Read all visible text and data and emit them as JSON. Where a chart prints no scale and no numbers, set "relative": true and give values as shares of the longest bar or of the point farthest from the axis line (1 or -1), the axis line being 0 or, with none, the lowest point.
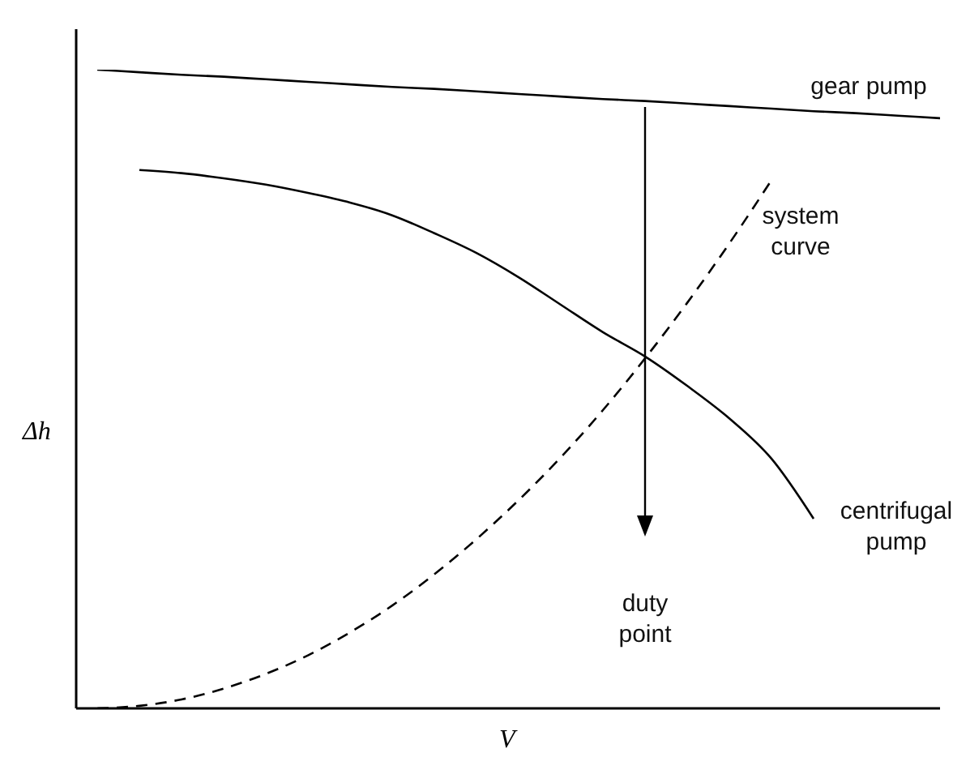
{
  "chart_data": {
    "type": "line",
    "relative": true,
    "xlabel": "V",
    "ylabel": "Δh",
    "marker": "none",
    "categories": [
      null,
      null,
      null,
      null,
      null,
      null,
      null,
      null,
      null,
      null,
      null,
      null,
      null,
      null,
      null,
      null,
      null,
      null,
      null,
      null,
      null
    ],
    "series": [
      {
        "name": "gear pump",
        "color": "#000000",
        "line_style": "solid",
        "values": [
          1,
          0.996,
          0.992,
          0.989,
          0.985,
          0.981,
          0.977,
          0.973,
          0.97,
          0.966,
          0.962,
          0.958,
          0.954,
          0.951,
          0.947,
          0.943,
          0.939,
          0.935,
          0.932,
          0.928,
          0.924
        ]
      },
      {
        "name": "centrifugal pump",
        "color": "#000000",
        "line_style": "solid",
        "values": [
          null,
          0.843,
          0.838,
          0.83,
          0.82,
          0.807,
          0.792,
          0.772,
          0.744,
          0.713,
          0.675,
          0.632,
          0.589,
          0.551,
          0.505,
          0.454,
          0.391,
          0.297,
          null,
          null,
          null
        ]
      },
      {
        "name": "system curve",
        "color": "#000000",
        "line_style": "dashed",
        "values": [
          0,
          0.004,
          0.014,
          0.031,
          0.054,
          0.083,
          0.119,
          0.161,
          0.21,
          0.265,
          0.326,
          0.393,
          0.467,
          0.548,
          0.635,
          0.728,
          0.827,
          null,
          null,
          null,
          null
        ]
      }
    ],
    "annotations": [
      "duty point"
    ]
  }
}
